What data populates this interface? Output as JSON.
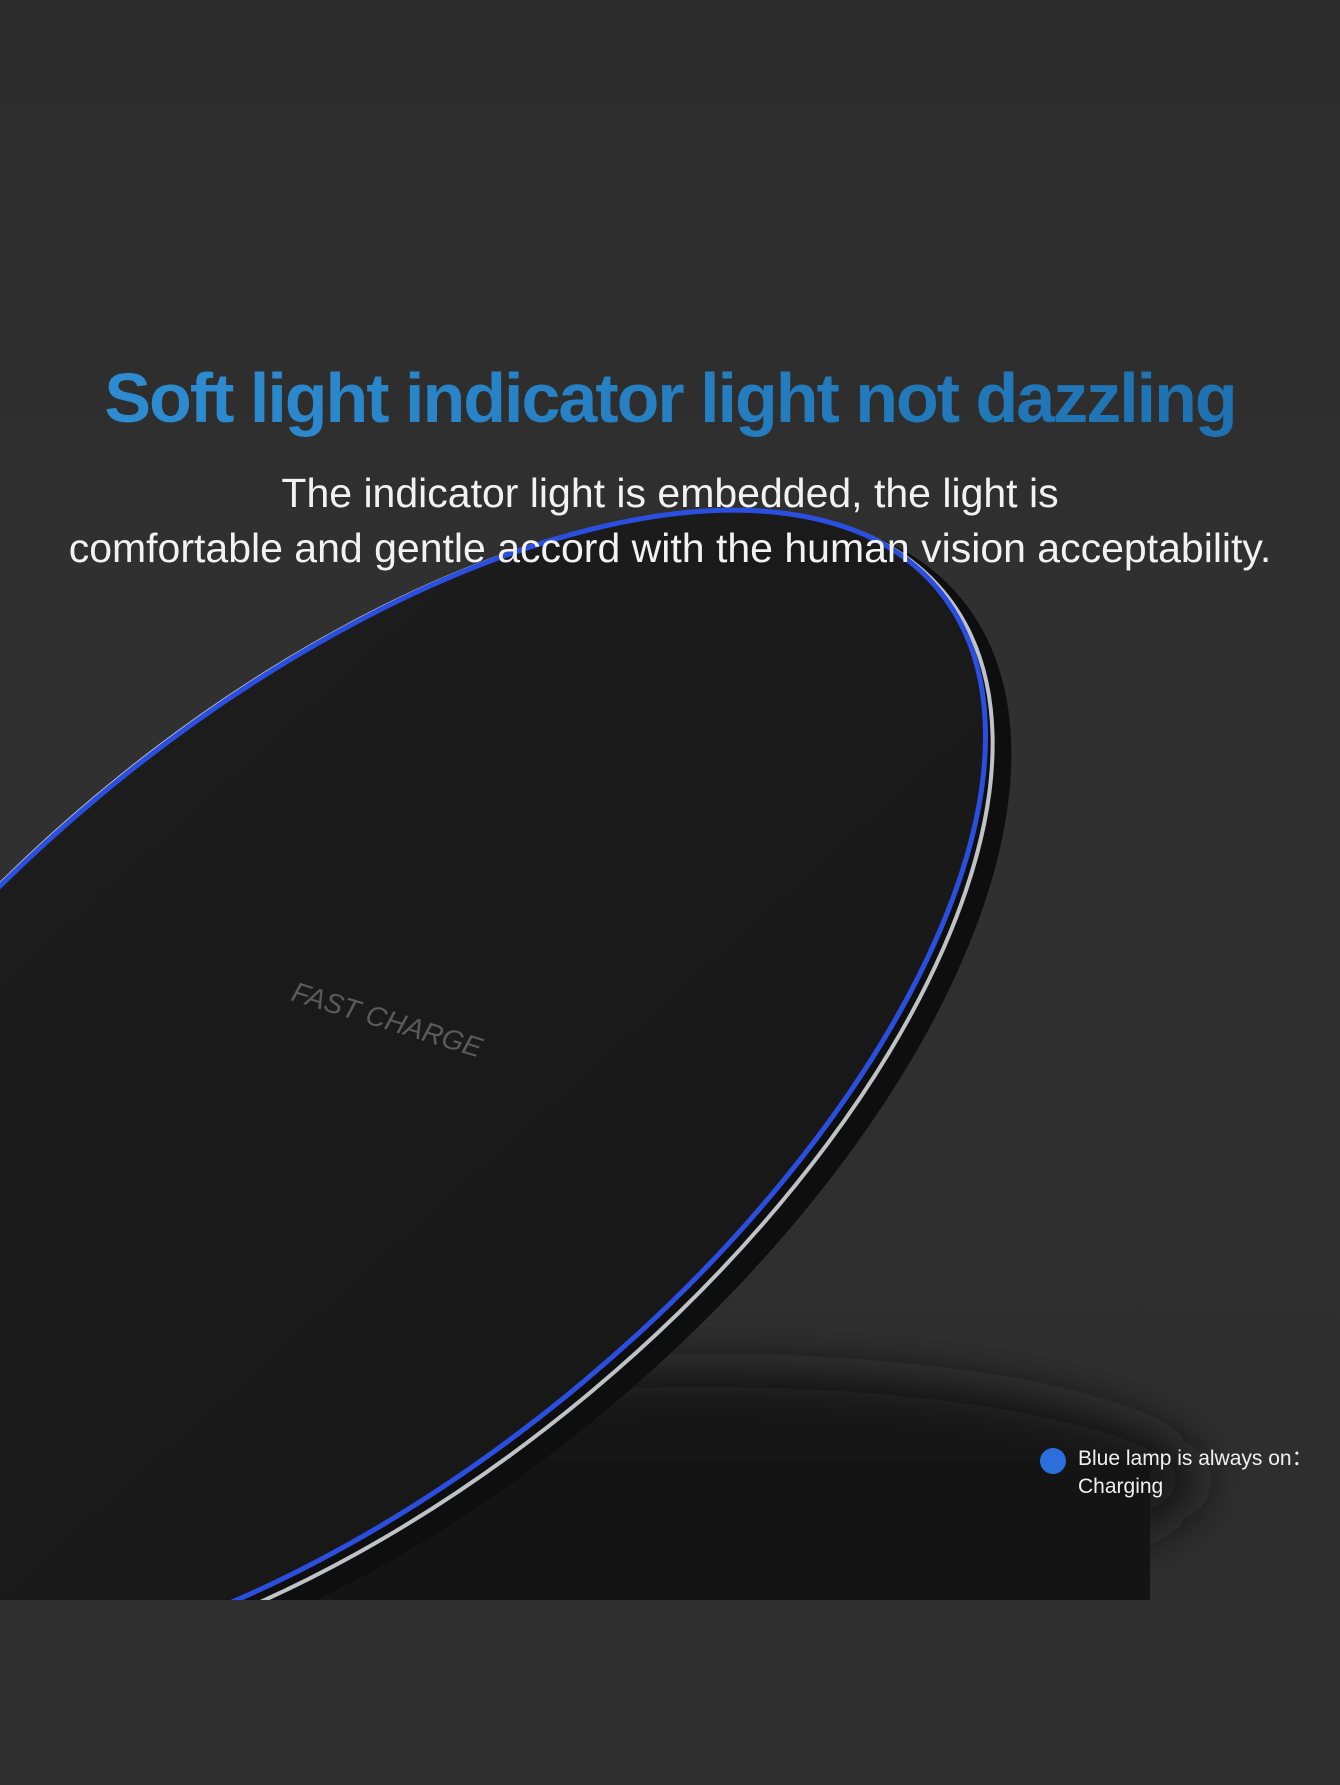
{
  "headline": "Soft light indicator light not dazzling",
  "description": {
    "line1": "The indicator light is embedded, the light is",
    "line2": "comfortable and gentle accord with the human vision acceptability."
  },
  "product": {
    "label": "FAST CHARGE",
    "rim_color": "#2a4fe0"
  },
  "legend": {
    "dot_color": "#2a6fdc",
    "line1": "Blue lamp is always on：",
    "line2": "Charging"
  }
}
